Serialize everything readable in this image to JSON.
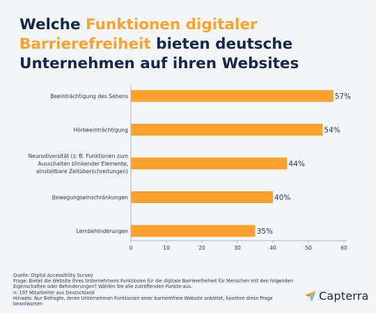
{
  "title": {
    "part1": "Welche ",
    "highlight1": "Funktionen digitaler",
    "highlight2": "Barrierefreiheit",
    "part2": " bieten deutsche",
    "line3": "Unternehmen auf ihren Websites"
  },
  "colors": {
    "bar": "#f9a131",
    "title_dark": "#14284b",
    "title_highlight": "#f9a131",
    "background": "#f3f5f6"
  },
  "chart_data": {
    "type": "bar",
    "orientation": "horizontal",
    "categories": [
      [
        "Beeinträchtigung des Sehens"
      ],
      [
        "Hörbeeinträchtigung"
      ],
      [
        "Neurodiversität (z. B. Funktionen zum",
        "Ausschalten blinkender Elemente,",
        "einstellbare Zeitüberschreitungen)"
      ],
      [
        "Bewegungseinschränkungen"
      ],
      [
        "Lernbehinderungen"
      ]
    ],
    "values": [
      57,
      54,
      44,
      40,
      35
    ],
    "value_labels": [
      "57%",
      "54%",
      "44%",
      "40%",
      "35%"
    ],
    "xlim": [
      0,
      60
    ],
    "xticks": [
      0,
      10,
      20,
      30,
      40,
      50,
      60
    ],
    "grid": false
  },
  "footer": {
    "source": "Quelle: Digital Accessibility Survey",
    "question1": "Frage: Bietet die Website Ihres Unternehmens Funktionen für die digitale Barrierefreiheit für Menschen mit den folgenden",
    "question2": "Eigenschaften oder Behinderungen? Wählen Sie alle zutreffenden Punkte aus.",
    "n": "n: 197 Mitarbeiter aus Deutschland",
    "note1": "Hinweis: Nur Befragte, deren Unternehmen Funktionen einer barrierefreie Website anbietet, konnten diese Frage",
    "note2": "beantworten"
  },
  "logo": {
    "text": "Capterra",
    "icon": "capterra-arrow-icon"
  }
}
